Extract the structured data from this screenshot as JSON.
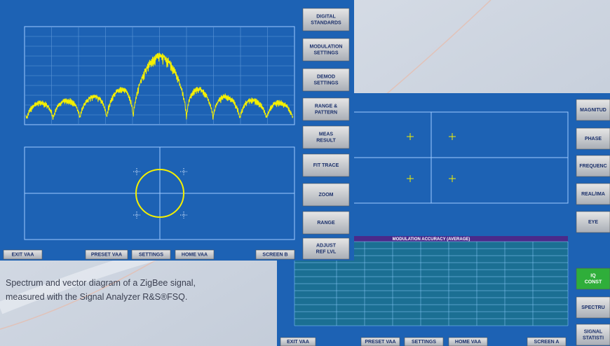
{
  "caption": [
    "Spectrum and vector diagram of a ZigBee signal,",
    "measured with the Signal Analyzer R&S®FSQ."
  ],
  "left_screen": {
    "softkeys": [
      [
        "DIGITAL",
        "STANDARDS"
      ],
      [
        "MODULATION",
        "SETTINGS"
      ],
      [
        "DEMOD",
        "SETTINGS"
      ],
      [
        "RANGE &",
        "PATTERN"
      ],
      [
        "MEAS",
        "RESULT"
      ],
      [
        "FIT TRACE"
      ],
      [
        "ZOOM"
      ],
      [
        "RANGE"
      ],
      [
        "ADJUST",
        "REF LVL"
      ]
    ],
    "bottom_buttons": [
      "EXIT VAA",
      "PRESET VAA",
      "SETTINGS",
      "HOME VAA",
      "SCREEN B"
    ]
  },
  "right_screen": {
    "softkeys": [
      [
        "MAGNITUD"
      ],
      [
        "PHASE"
      ],
      [
        "FREQUENC"
      ],
      [
        "REAL/IMA"
      ],
      [
        "EYE"
      ],
      [
        "IQ",
        "CONST"
      ],
      [
        "SPECTRU"
      ],
      [
        "SIGNAL",
        "STATISTI"
      ]
    ],
    "table_title": "MODULATION ACCURACY (AVERAGE)",
    "bottom_buttons": [
      "EXIT VAA",
      "PRESET VAA",
      "SETTINGS",
      "HOME VAA",
      "SCREEN A"
    ]
  }
}
